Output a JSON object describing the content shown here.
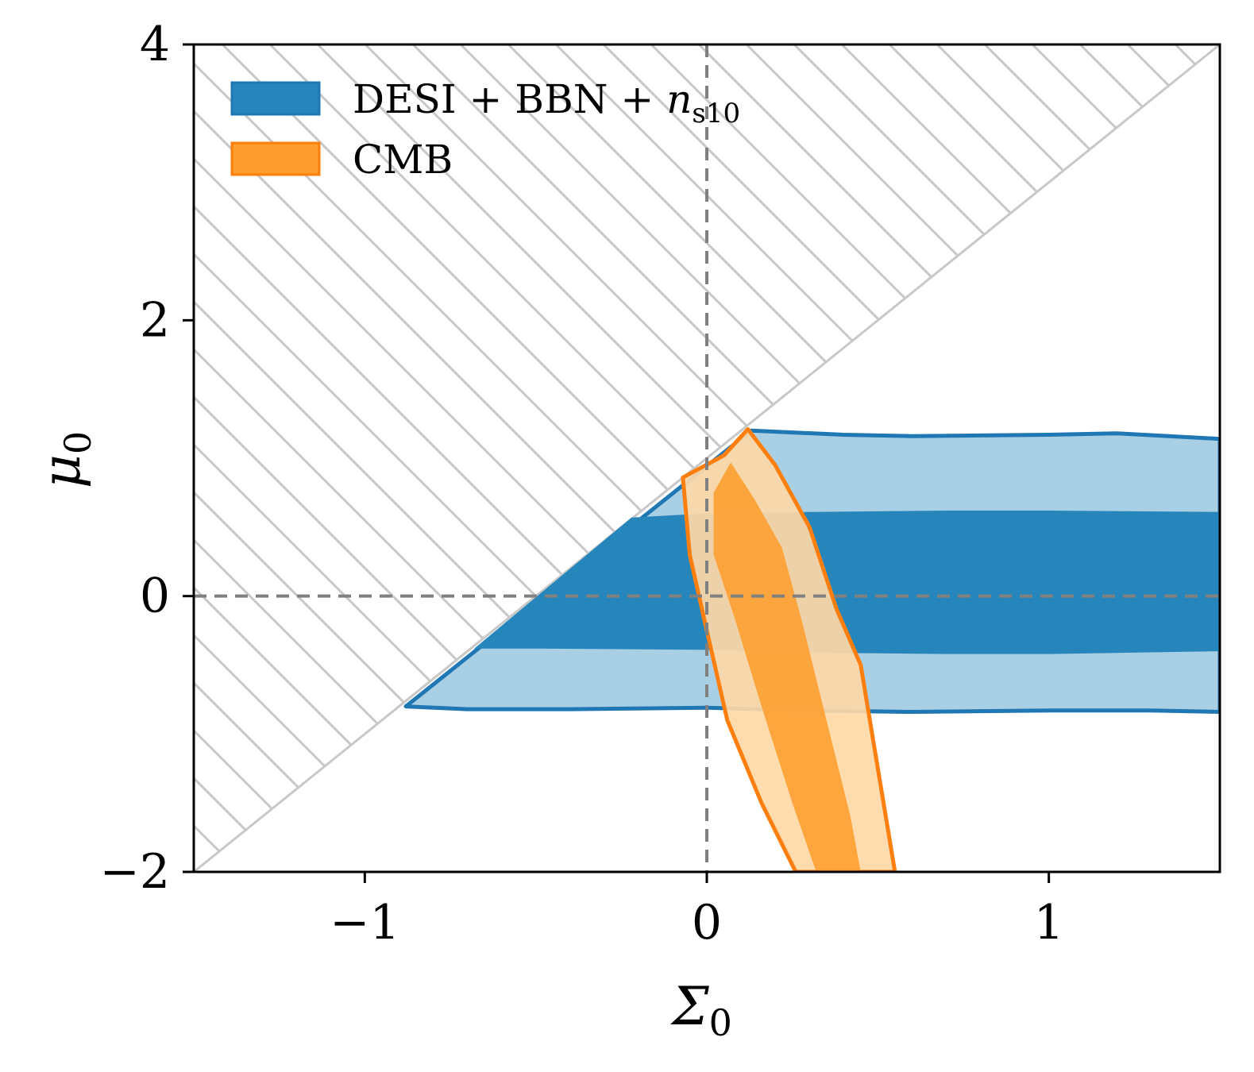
{
  "chart_data": {
    "type": "contour",
    "xlabel": "Σ",
    "xlabel_sub": "0",
    "ylabel": "μ",
    "ylabel_sub": "0",
    "xlim": [
      -1.5,
      1.5
    ],
    "ylim": [
      -2,
      4
    ],
    "xticks": [
      {
        "value": -1,
        "label": "−1"
      },
      {
        "value": 0,
        "label": "0"
      },
      {
        "value": 1,
        "label": "1"
      }
    ],
    "yticks": [
      {
        "value": -2,
        "label": "−2"
      },
      {
        "value": 0,
        "label": "0"
      },
      {
        "value": 2,
        "label": "2"
      },
      {
        "value": 4,
        "label": "4"
      }
    ],
    "reference_lines": {
      "x": 0,
      "y": 0
    },
    "excluded_region": {
      "description": "hatched region above line mu0 = 2*Sigma0 + 1",
      "boundary_line": [
        [
          -1.5,
          -2
        ],
        [
          1.5,
          4
        ]
      ]
    },
    "legend": {
      "position": "top-left",
      "entries": [
        {
          "label_main": "DESI + BBN + ",
          "label_var": "n",
          "label_sub": "s10",
          "color": "#1f77b4"
        },
        {
          "label_main": "CMB",
          "label_var": "",
          "label_sub": "",
          "color": "#ff7f0e"
        }
      ]
    },
    "series": [
      {
        "name": "DESI + BBN + n_s10",
        "colors": {
          "inner": "#2686bc",
          "outer": "#a9cfe5",
          "edge": "#1f77b4"
        },
        "contour_95": [
          [
            -0.88,
            -0.8
          ],
          [
            -0.7,
            -0.82
          ],
          [
            -0.4,
            -0.82
          ],
          [
            0,
            -0.81
          ],
          [
            0.3,
            -0.83
          ],
          [
            0.6,
            -0.84
          ],
          [
            1.0,
            -0.83
          ],
          [
            1.3,
            -0.83
          ],
          [
            1.5,
            -0.84
          ],
          [
            1.5,
            1.14
          ],
          [
            1.2,
            1.18
          ],
          [
            1.0,
            1.17
          ],
          [
            0.6,
            1.16
          ],
          [
            0.4,
            1.17
          ],
          [
            0.13,
            1.2
          ],
          [
            -0.88,
            -0.8
          ]
        ],
        "contour_68": [
          [
            -0.68,
            -0.38
          ],
          [
            -0.5,
            -0.38
          ],
          [
            0,
            -0.39
          ],
          [
            0.3,
            -0.41
          ],
          [
            0.7,
            -0.42
          ],
          [
            1.0,
            -0.42
          ],
          [
            1.5,
            -0.4
          ],
          [
            1.5,
            0.61
          ],
          [
            1.0,
            0.62
          ],
          [
            0.7,
            0.62
          ],
          [
            0.3,
            0.61
          ],
          [
            0,
            0.6
          ],
          [
            -0.22,
            0.57
          ],
          [
            -0.68,
            -0.38
          ]
        ]
      },
      {
        "name": "CMB",
        "colors": {
          "inner": "#fe9d2e",
          "outer": "#fed9a7",
          "edge": "#ff7f0e"
        },
        "contour_95": [
          [
            -0.07,
            0.86
          ],
          [
            0.05,
            1.02
          ],
          [
            0.12,
            1.21
          ],
          [
            0.2,
            0.95
          ],
          [
            0.3,
            0.5
          ],
          [
            0.38,
            -0.1
          ],
          [
            0.45,
            -0.5
          ],
          [
            0.55,
            -2
          ],
          [
            0.26,
            -2
          ],
          [
            0.16,
            -1.5
          ],
          [
            0.06,
            -0.9
          ],
          [
            0,
            -0.25
          ],
          [
            -0.05,
            0.3
          ],
          [
            -0.07,
            0.86
          ]
        ],
        "contour_68": [
          [
            0.02,
            0.75
          ],
          [
            0.07,
            0.97
          ],
          [
            0.14,
            0.7
          ],
          [
            0.22,
            0.35
          ],
          [
            0.28,
            -0.2
          ],
          [
            0.34,
            -0.8
          ],
          [
            0.42,
            -1.6
          ],
          [
            0.45,
            -2
          ],
          [
            0.32,
            -2
          ],
          [
            0.25,
            -1.5
          ],
          [
            0.16,
            -0.8
          ],
          [
            0.08,
            -0.15
          ],
          [
            0.02,
            0.3
          ],
          [
            0.02,
            0.75
          ]
        ]
      }
    ]
  }
}
